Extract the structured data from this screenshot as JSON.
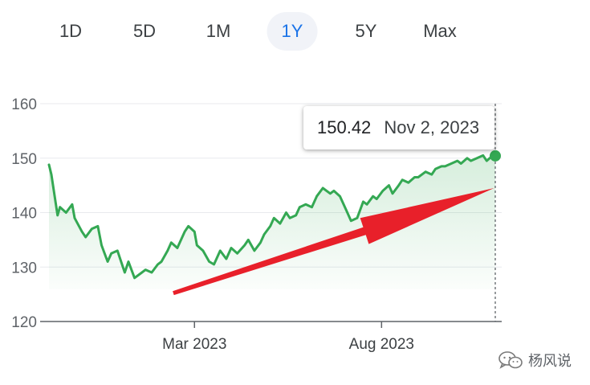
{
  "range_tabs": [
    {
      "label": "1D",
      "active": false
    },
    {
      "label": "5D",
      "active": false
    },
    {
      "label": "1M",
      "active": false
    },
    {
      "label": "1Y",
      "active": true
    },
    {
      "label": "5Y",
      "active": false
    },
    {
      "label": "Max",
      "active": false
    }
  ],
  "tooltip": {
    "price": "150.42",
    "date": "Nov 2, 2023"
  },
  "watermark": {
    "text": "杨风说",
    "icon": "wechat-icon"
  },
  "colors": {
    "line": "#34a853",
    "fill": "#34a853",
    "arrow": "#e8202a",
    "active_tab": "#1a73e8",
    "grid": "#e8eaed",
    "axis": "#5f6368"
  },
  "chart_data": {
    "type": "area",
    "title": "",
    "xlabel": "",
    "ylabel": "",
    "ylim": [
      120,
      160
    ],
    "yticks": [
      "120",
      "130",
      "140",
      "150",
      "160"
    ],
    "xlim": [
      "2022-11-02",
      "2023-11-02"
    ],
    "xticks": [
      {
        "label": "Mar 2023",
        "date": "2023-03-01"
      },
      {
        "label": "Aug 2023",
        "date": "2023-08-01"
      }
    ],
    "grid": true,
    "series": [
      {
        "x": [
          "2022-11-02",
          "2022-11-04",
          "2022-11-09",
          "2022-11-11",
          "2022-11-16",
          "2022-11-21",
          "2022-11-23",
          "2022-11-29",
          "2022-12-02",
          "2022-12-07",
          "2022-12-12",
          "2022-12-15",
          "2022-12-20",
          "2022-12-23",
          "2022-12-28",
          "2023-01-03",
          "2023-01-06",
          "2023-01-11",
          "2023-01-17",
          "2023-01-20",
          "2023-01-25",
          "2023-01-30",
          "2023-02-02",
          "2023-02-07",
          "2023-02-10",
          "2023-02-15",
          "2023-02-21",
          "2023-02-24",
          "2023-03-01",
          "2023-03-03",
          "2023-03-08",
          "2023-03-13",
          "2023-03-17",
          "2023-03-22",
          "2023-03-27",
          "2023-03-31",
          "2023-04-05",
          "2023-04-11",
          "2023-04-14",
          "2023-04-19",
          "2023-04-24",
          "2023-04-27",
          "2023-05-02",
          "2023-05-05",
          "2023-05-10",
          "2023-05-15",
          "2023-05-18",
          "2023-05-23",
          "2023-05-26",
          "2023-05-31",
          "2023-06-05",
          "2023-06-09",
          "2023-06-14",
          "2023-06-20",
          "2023-06-23",
          "2023-06-28",
          "2023-07-03",
          "2023-07-07",
          "2023-07-12",
          "2023-07-17",
          "2023-07-20",
          "2023-07-25",
          "2023-07-28",
          "2023-08-02",
          "2023-08-07",
          "2023-08-10",
          "2023-08-15",
          "2023-08-18",
          "2023-08-23",
          "2023-08-28",
          "2023-08-31",
          "2023-09-06",
          "2023-09-11",
          "2023-09-14",
          "2023-09-19",
          "2023-09-22",
          "2023-09-27",
          "2023-10-02",
          "2023-10-05",
          "2023-10-10",
          "2023-10-13",
          "2023-10-18",
          "2023-10-23",
          "2023-10-26",
          "2023-10-31",
          "2023-11-02"
        ],
        "values": [
          148.8,
          147.0,
          139.5,
          141.0,
          140.0,
          141.5,
          139.0,
          136.5,
          135.5,
          137.0,
          137.5,
          134.0,
          131.0,
          132.5,
          133.0,
          129.0,
          131.0,
          128.0,
          129.0,
          129.5,
          129.0,
          130.5,
          131.0,
          133.0,
          134.5,
          133.5,
          136.5,
          137.5,
          136.5,
          134.0,
          133.0,
          131.0,
          130.5,
          133.0,
          131.5,
          133.5,
          132.5,
          134.0,
          135.0,
          133.0,
          134.5,
          136.0,
          137.5,
          139.0,
          138.0,
          140.0,
          139.0,
          139.5,
          141.0,
          141.5,
          141.0,
          143.0,
          144.5,
          143.5,
          144.0,
          143.0,
          140.5,
          138.5,
          139.0,
          142.0,
          141.5,
          143.0,
          142.5,
          144.0,
          145.0,
          143.5,
          145.0,
          146.0,
          145.5,
          146.5,
          146.5,
          147.5,
          147.0,
          148.0,
          148.5,
          148.5,
          149.0,
          149.5,
          149.0,
          150.0,
          149.5,
          150.0,
          150.5,
          149.5,
          150.5,
          150.42
        ]
      }
    ],
    "annotations": [
      {
        "type": "arrow",
        "from": [
          "2023-02-12",
          125
        ],
        "to": [
          "2023-11-01",
          144.5
        ]
      }
    ]
  }
}
